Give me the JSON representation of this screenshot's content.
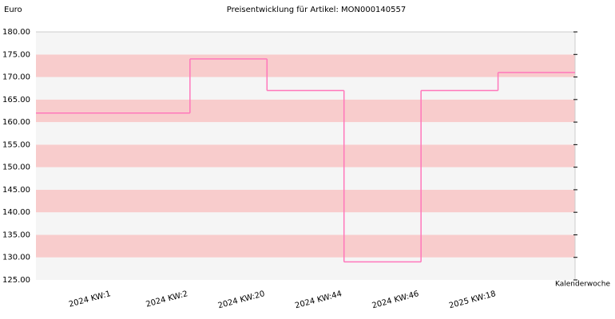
{
  "chart_data": {
    "type": "step-line",
    "title": "Preisentwicklung für Artikel: MON000140557",
    "y_label": "Euro",
    "x_label": "Kalenderwoche",
    "categories": [
      "2024 KW:1",
      "2024 KW:2",
      "2024 KW:20",
      "2024 KW:44",
      "2024 KW:46",
      "2025 KW:18"
    ],
    "values": [
      162,
      174,
      167,
      129,
      167,
      171
    ],
    "color": "#ff77bb",
    "band_colors": [
      "#f5f5f5",
      "#f8cccc"
    ],
    "ylim": [
      125,
      180
    ],
    "yticks": [
      {
        "value": 125,
        "label": "125.00"
      },
      {
        "value": 130,
        "label": "130.00"
      },
      {
        "value": 135,
        "label": "135.00"
      },
      {
        "value": 140,
        "label": "140.00"
      },
      {
        "value": 145,
        "label": "145.00"
      },
      {
        "value": 150,
        "label": "150.00"
      },
      {
        "value": 155,
        "label": "155.00"
      },
      {
        "value": 160,
        "label": "160.00"
      },
      {
        "value": 165,
        "label": "165.00"
      },
      {
        "value": 170,
        "label": "170.00"
      },
      {
        "value": 175,
        "label": "175.00"
      },
      {
        "value": 180,
        "label": "180.00"
      }
    ]
  }
}
